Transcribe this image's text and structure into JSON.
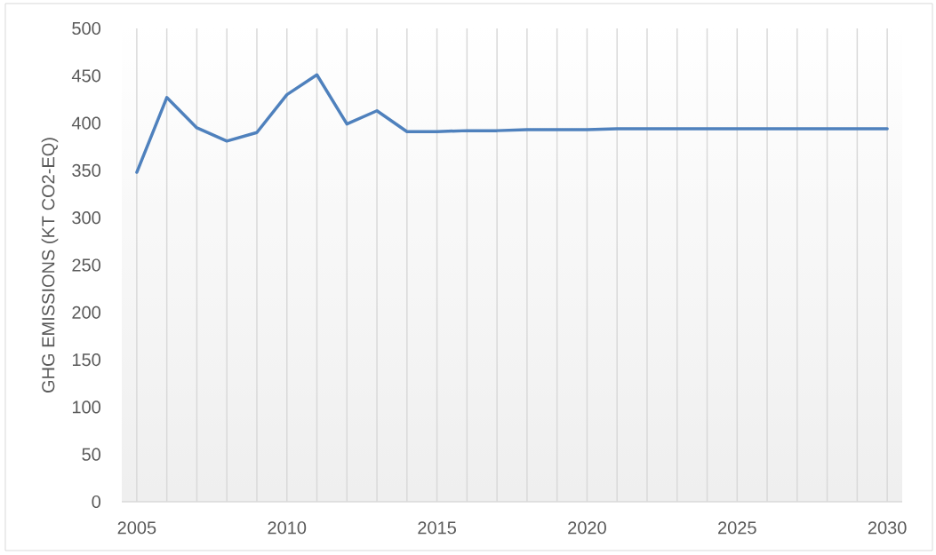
{
  "chart_data": {
    "type": "line",
    "ylabel": "GHG EMISSIONS (KT CO2-EQ)",
    "x": [
      2005,
      2006,
      2007,
      2008,
      2009,
      2010,
      2011,
      2012,
      2013,
      2014,
      2015,
      2016,
      2017,
      2018,
      2019,
      2020,
      2021,
      2022,
      2023,
      2024,
      2025,
      2026,
      2027,
      2028,
      2029,
      2030
    ],
    "series": [
      {
        "color": "#4f81bd",
        "values": [
          348,
          427,
          395,
          381,
          390,
          430,
          451,
          399,
          413,
          391,
          391,
          392,
          392,
          393,
          393,
          393,
          394,
          394,
          394,
          394,
          394,
          394,
          394,
          394,
          394,
          394
        ]
      }
    ],
    "xlim": [
      2004.5,
      2030.5
    ],
    "xticks": [
      2005,
      {
        "value": 2006,
        "label": null
      },
      {
        "value": 2007,
        "label": null
      },
      {
        "value": 2008,
        "label": null
      },
      {
        "value": 2009,
        "label": null
      },
      2010,
      {
        "value": 2011,
        "label": null
      },
      {
        "value": 2012,
        "label": null
      },
      {
        "value": 2013,
        "label": null
      },
      {
        "value": 2014,
        "label": null
      },
      2015,
      {
        "value": 2016,
        "label": null
      },
      {
        "value": 2017,
        "label": null
      },
      {
        "value": 2018,
        "label": null
      },
      {
        "value": 2019,
        "label": null
      },
      2020,
      {
        "value": 2021,
        "label": null
      },
      {
        "value": 2022,
        "label": null
      },
      {
        "value": 2023,
        "label": null
      },
      {
        "value": 2024,
        "label": null
      },
      2025,
      {
        "value": 2026,
        "label": null
      },
      {
        "value": 2027,
        "label": null
      },
      {
        "value": 2028,
        "label": null
      },
      {
        "value": 2029,
        "label": null
      },
      2030
    ],
    "ylim": [
      0,
      500
    ],
    "yticks": [
      0,
      50,
      100,
      150,
      200,
      250,
      300,
      350,
      400,
      450,
      500
    ],
    "grid": "x",
    "legend": false,
    "marker": "none",
    "line_style": "solid"
  }
}
